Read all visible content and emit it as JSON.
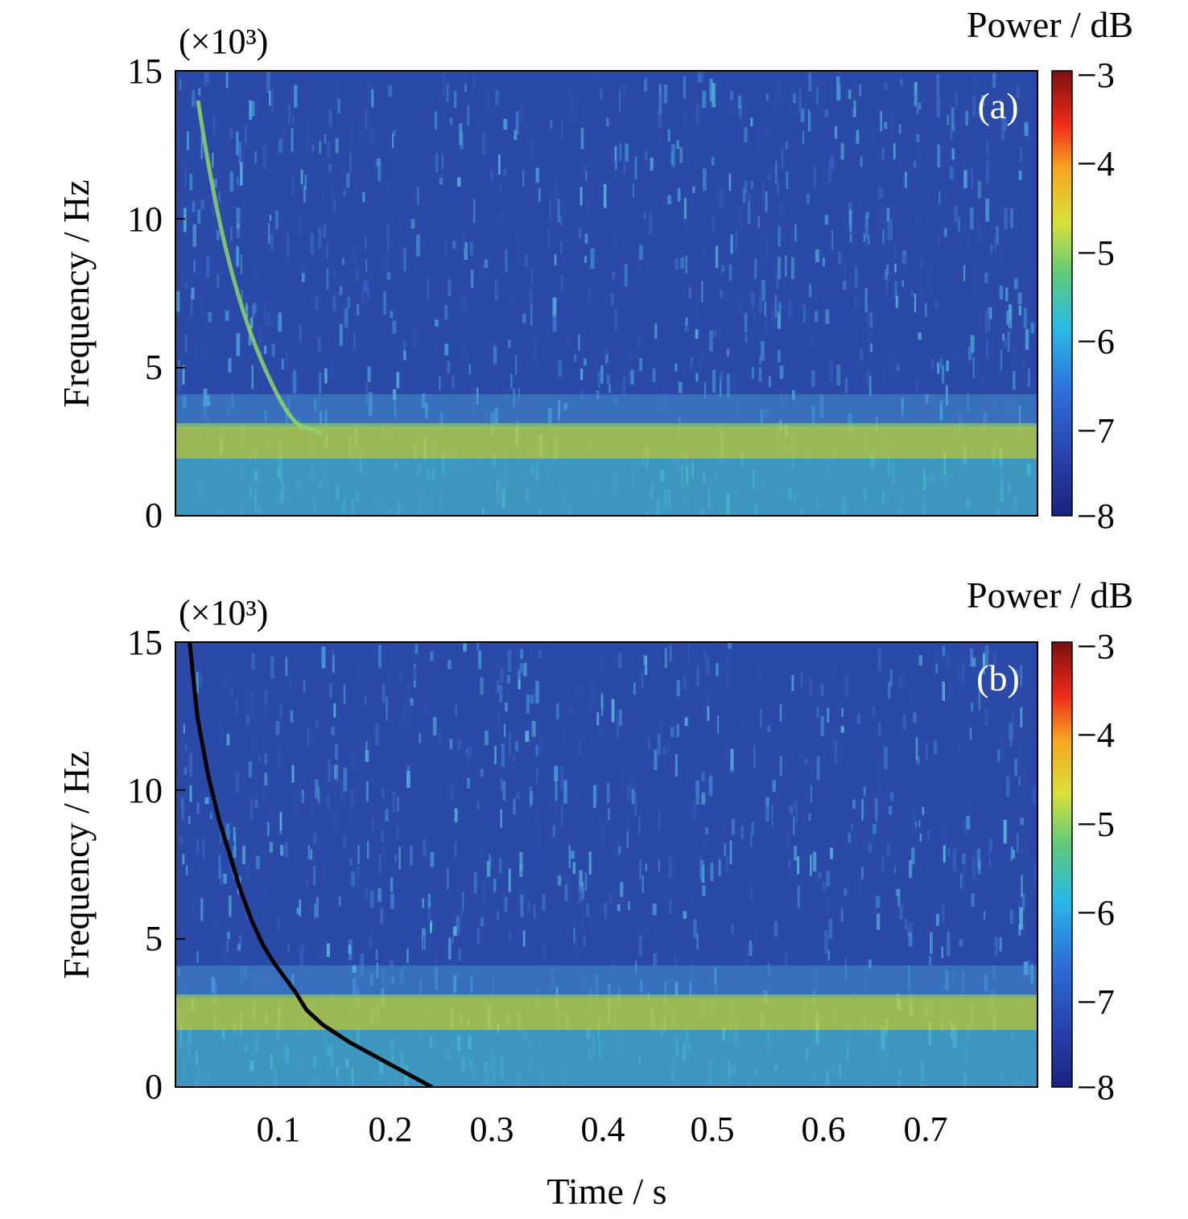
{
  "chart_data": [
    {
      "type": "heatmap",
      "panel_label": "(a)",
      "ylabel": "Frequency / Hz",
      "y_multiplier": "(×10³)",
      "yticks": [
        "0",
        "5",
        "10",
        "15"
      ],
      "ylim": [
        0,
        15000
      ],
      "xlim": [
        0,
        0.79
      ],
      "colorbar": {
        "title": "Power / dB",
        "ticks": [
          "−3",
          "−4",
          "−5",
          "−6",
          "−7",
          "−8"
        ],
        "range": [
          -8,
          -3
        ],
        "colormap": "jet"
      },
      "features": [
        {
          "kind": "band",
          "freq_hz": [
            1800,
            3000
          ],
          "power_db": -5.0
        },
        {
          "kind": "band",
          "freq_hz": [
            0,
            1800
          ],
          "power_db": -6.2
        },
        {
          "kind": "background",
          "power_db": -7.3
        },
        {
          "kind": "dispersive_trace",
          "points": [
            [
              0.02,
              14000
            ],
            [
              0.04,
              10000
            ],
            [
              0.06,
              7000
            ],
            [
              0.08,
              5000
            ],
            [
              0.1,
              3800
            ]
          ]
        }
      ]
    },
    {
      "type": "heatmap",
      "panel_label": "(b)",
      "ylabel": "Frequency / Hz",
      "xlabel": "Time / s",
      "y_multiplier": "(×10³)",
      "yticks": [
        "0",
        "5",
        "10",
        "15"
      ],
      "xticks": [
        "0.1",
        "0.2",
        "0.3",
        "0.4",
        "0.5",
        "0.6",
        "0.7"
      ],
      "ylim": [
        0,
        15000
      ],
      "xlim": [
        0,
        0.79
      ],
      "colorbar": {
        "title": "Power / dB",
        "ticks": [
          "−3",
          "−4",
          "−5",
          "−6",
          "−7",
          "−8"
        ],
        "range": [
          -8,
          -3
        ],
        "colormap": "jet"
      },
      "overlay_curve": {
        "x": [
          0.013,
          0.02,
          0.03,
          0.04,
          0.05,
          0.06,
          0.07,
          0.08,
          0.09,
          0.1,
          0.11,
          0.12,
          0.135,
          0.16,
          0.2,
          0.235
        ],
        "y": [
          15000,
          12500,
          10500,
          9000,
          7800,
          6600,
          5600,
          4800,
          4200,
          3700,
          3200,
          2600,
          2100,
          1500,
          700,
          0
        ],
        "color": "#000000"
      }
    }
  ]
}
